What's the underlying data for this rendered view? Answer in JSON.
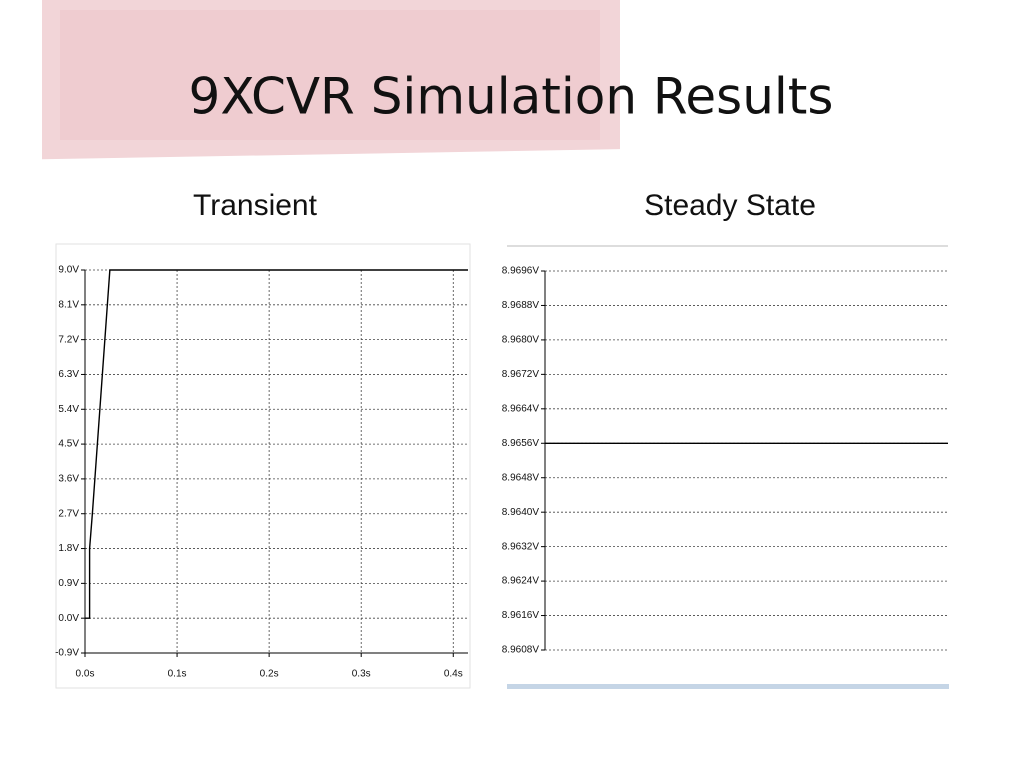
{
  "title": "9XCVR Simulation Results",
  "chart_data": [
    {
      "type": "line",
      "title": "Transient",
      "x": [
        0,
        0.005,
        0.005,
        0.008,
        0.027,
        0.416
      ],
      "values": [
        0,
        0,
        1.8,
        2.7,
        9.0,
        9.0
      ],
      "color": "#000000",
      "xlim": [
        0,
        0.416
      ],
      "ylim": [
        -0.9,
        9.0
      ],
      "xticks": [
        {
          "value": 0,
          "label": "0.0s"
        },
        {
          "value": 0.1,
          "label": "0.1s"
        },
        {
          "value": 0.2,
          "label": "0.2s"
        },
        {
          "value": 0.3,
          "label": "0.3s"
        },
        {
          "value": 0.4,
          "label": "0.4s"
        }
      ],
      "yticks": [
        {
          "value": 9.0,
          "label": "9.0V"
        },
        {
          "value": 8.1,
          "label": "8.1V"
        },
        {
          "value": 7.2,
          "label": "7.2V"
        },
        {
          "value": 6.3,
          "label": "6.3V"
        },
        {
          "value": 5.4,
          "label": "5.4V"
        },
        {
          "value": 4.5,
          "label": "4.5V"
        },
        {
          "value": 3.6,
          "label": "3.6V"
        },
        {
          "value": 2.7,
          "label": "2.7V"
        },
        {
          "value": 1.8,
          "label": "1.8V"
        },
        {
          "value": 0.9,
          "label": "0.9V"
        },
        {
          "value": 0.0,
          "label": "0.0V"
        },
        {
          "value": -0.9,
          "label": "-0.9V"
        }
      ],
      "grid": true
    },
    {
      "type": "hline",
      "title": "Steady State",
      "values": [
        8.9656
      ],
      "color": "#000000",
      "ylim": [
        8.9608,
        8.9696
      ],
      "yticks": [
        {
          "value": 8.9696,
          "label": "8.9696V"
        },
        {
          "value": 8.9688,
          "label": "8.9688V"
        },
        {
          "value": 8.968,
          "label": "8.9680V"
        },
        {
          "value": 8.9672,
          "label": "8.9672V"
        },
        {
          "value": 8.9664,
          "label": "8.9664V"
        },
        {
          "value": 8.9656,
          "label": "8.9656V"
        },
        {
          "value": 8.9648,
          "label": "8.9648V"
        },
        {
          "value": 8.964,
          "label": "8.9640V"
        },
        {
          "value": 8.9632,
          "label": "8.9632V"
        },
        {
          "value": 8.9624,
          "label": "8.9624V"
        },
        {
          "value": 8.9616,
          "label": "8.9616V"
        },
        {
          "value": 8.9608,
          "label": "8.9608V"
        }
      ],
      "grid": true
    }
  ]
}
